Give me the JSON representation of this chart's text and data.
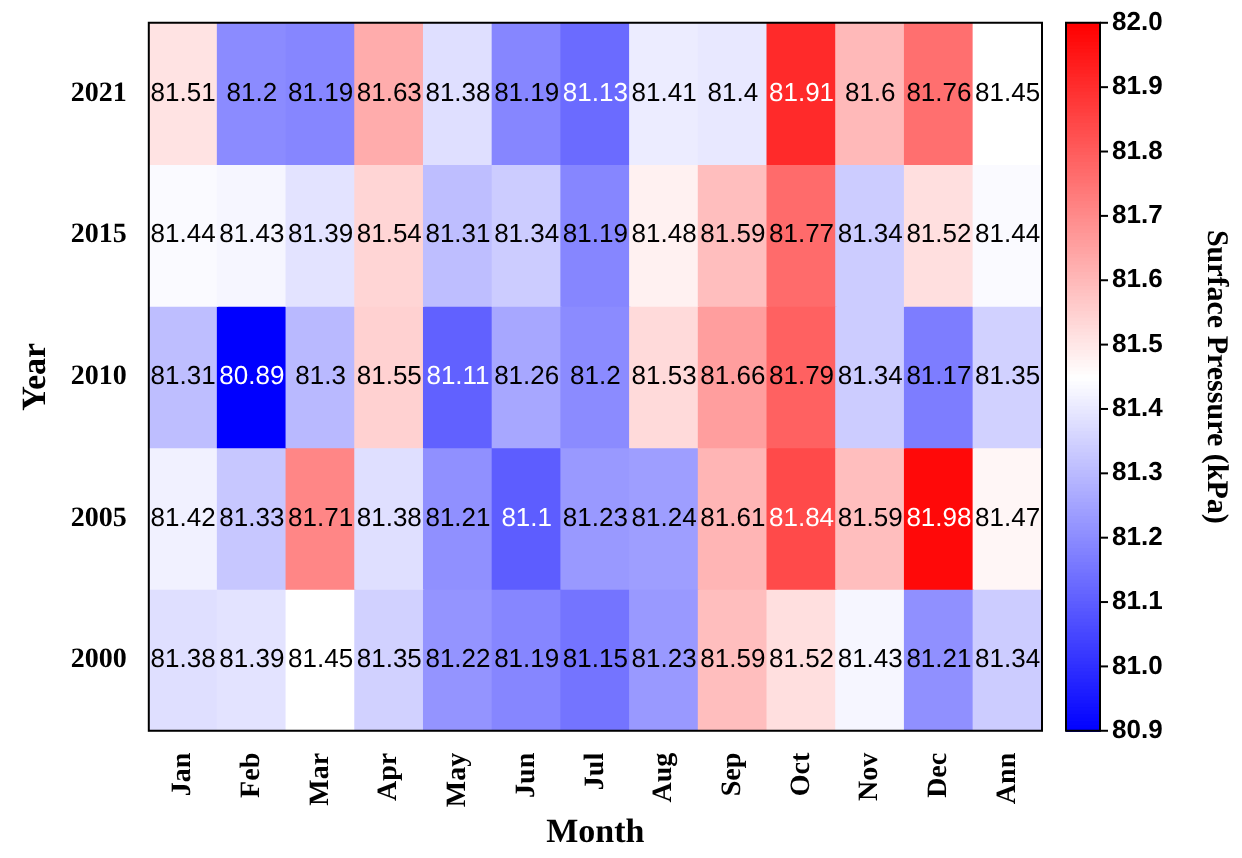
{
  "chart_data": {
    "type": "heatmap",
    "xlabel": "Month",
    "ylabel": "Year",
    "clabel": "Surface Pressure (kPa)",
    "categories": [
      "Jan",
      "Feb",
      "Mar",
      "Apr",
      "May",
      "Jun",
      "Jul",
      "Aug",
      "Sep",
      "Oct",
      "Nov",
      "Dec",
      "Ann"
    ],
    "y_categories": [
      "2021",
      "2015",
      "2010",
      "2005",
      "2000"
    ],
    "cells": [
      [
        81.51,
        81.2,
        81.19,
        81.63,
        81.38,
        81.19,
        81.13,
        81.41,
        81.4,
        81.91,
        81.6,
        81.76,
        81.45
      ],
      [
        81.44,
        81.43,
        81.39,
        81.54,
        81.31,
        81.34,
        81.19,
        81.48,
        81.59,
        81.77,
        81.34,
        81.52,
        81.44
      ],
      [
        81.31,
        80.89,
        81.3,
        81.55,
        81.11,
        81.26,
        81.2,
        81.53,
        81.66,
        81.79,
        81.34,
        81.17,
        81.35
      ],
      [
        81.42,
        81.33,
        81.71,
        81.38,
        81.21,
        81.1,
        81.23,
        81.24,
        81.61,
        81.84,
        81.59,
        81.98,
        81.47
      ],
      [
        81.38,
        81.39,
        81.45,
        81.35,
        81.22,
        81.19,
        81.15,
        81.23,
        81.59,
        81.52,
        81.43,
        81.21,
        81.34
      ]
    ],
    "data_labels": true,
    "clim": [
      80.9,
      82.0
    ],
    "cticks": [
      80.9,
      {
        "value": 81,
        "label": "81.0"
      },
      81.1,
      81.2,
      81.3,
      81.4,
      81.5,
      81.6,
      81.7,
      81.8,
      81.9,
      {
        "value": 82,
        "label": "82.0"
      }
    ]
  }
}
